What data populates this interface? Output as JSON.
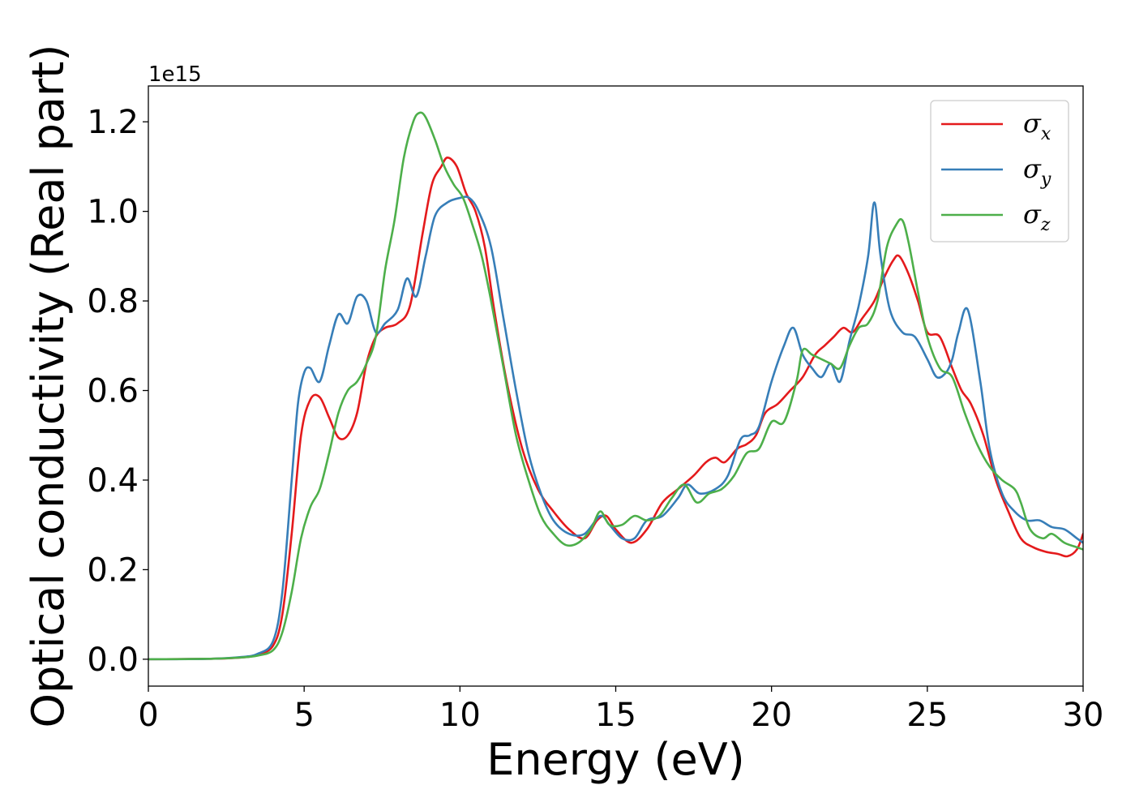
{
  "chart_data": {
    "type": "line",
    "title": "",
    "xlabel": "Energy (eV)",
    "ylabel": "Optical conductivity (Real part)",
    "y_offset_label": "1e15",
    "xlim": [
      0,
      30
    ],
    "ylim": [
      -0.06,
      1.28
    ],
    "x_ticks": [
      0,
      5,
      10,
      15,
      20,
      25,
      30
    ],
    "x_tick_labels": [
      "0",
      "5",
      "10",
      "15",
      "20",
      "25",
      "30"
    ],
    "y_ticks": [
      0.0,
      0.2,
      0.4,
      0.6,
      0.8,
      1.0,
      1.2
    ],
    "y_tick_labels": [
      "0.0",
      "0.2",
      "0.4",
      "0.6",
      "0.8",
      "1.0",
      "1.2"
    ],
    "grid": false,
    "legend_position": "top-right",
    "series": [
      {
        "name": "σx",
        "symbol": "σ",
        "subscript": "x",
        "color": "#e41a1c",
        "x": [
          0,
          2,
          3,
          3.5,
          4.0,
          4.3,
          4.6,
          4.9,
          5.2,
          5.5,
          5.8,
          6.1,
          6.4,
          6.7,
          7.0,
          7.3,
          7.6,
          8.0,
          8.4,
          8.8,
          9.1,
          9.4,
          9.6,
          9.9,
          10.2,
          10.5,
          10.8,
          11.1,
          11.5,
          12.0,
          12.5,
          13.0,
          13.5,
          14.0,
          14.4,
          14.7,
          15.0,
          15.5,
          16.0,
          16.5,
          17.0,
          17.5,
          17.9,
          18.2,
          18.5,
          18.9,
          19.2,
          19.5,
          19.8,
          20.2,
          20.6,
          21.0,
          21.4,
          21.7,
          22.0,
          22.3,
          22.6,
          22.9,
          23.3,
          23.6,
          23.9,
          24.1,
          24.4,
          24.7,
          25.0,
          25.4,
          25.8,
          26.1,
          26.4,
          26.8,
          27.2,
          27.6,
          28.0,
          28.4,
          28.8,
          29.2,
          29.5,
          29.8,
          30.0
        ],
        "y": [
          0.0,
          0.001,
          0.004,
          0.01,
          0.03,
          0.1,
          0.28,
          0.5,
          0.58,
          0.585,
          0.54,
          0.495,
          0.5,
          0.55,
          0.66,
          0.72,
          0.74,
          0.75,
          0.79,
          0.95,
          1.06,
          1.1,
          1.12,
          1.1,
          1.04,
          1.0,
          0.92,
          0.78,
          0.62,
          0.47,
          0.38,
          0.33,
          0.29,
          0.27,
          0.31,
          0.32,
          0.29,
          0.26,
          0.29,
          0.35,
          0.38,
          0.41,
          0.44,
          0.45,
          0.44,
          0.47,
          0.48,
          0.5,
          0.55,
          0.57,
          0.6,
          0.63,
          0.68,
          0.7,
          0.72,
          0.74,
          0.73,
          0.76,
          0.8,
          0.85,
          0.89,
          0.9,
          0.86,
          0.8,
          0.73,
          0.72,
          0.65,
          0.6,
          0.57,
          0.5,
          0.4,
          0.33,
          0.27,
          0.25,
          0.24,
          0.235,
          0.23,
          0.245,
          0.28
        ]
      },
      {
        "name": "σy",
        "symbol": "σ",
        "subscript": "y",
        "color": "#377eb8",
        "x": [
          0,
          2,
          3,
          3.5,
          4.0,
          4.3,
          4.6,
          4.8,
          5.0,
          5.2,
          5.5,
          5.8,
          6.1,
          6.4,
          6.7,
          7.0,
          7.3,
          7.6,
          8.0,
          8.3,
          8.6,
          8.9,
          9.2,
          9.6,
          10.0,
          10.3,
          10.6,
          11.0,
          11.4,
          11.8,
          12.2,
          12.6,
          13.0,
          13.5,
          14.0,
          14.5,
          14.8,
          15.2,
          15.6,
          16.0,
          16.5,
          17.0,
          17.3,
          17.7,
          18.2,
          18.6,
          19.0,
          19.3,
          19.6,
          20.0,
          20.4,
          20.7,
          21.0,
          21.3,
          21.6,
          21.9,
          22.2,
          22.5,
          22.8,
          23.1,
          23.3,
          23.5,
          23.8,
          24.2,
          24.6,
          25.0,
          25.3,
          25.6,
          25.8,
          26.0,
          26.3,
          26.7,
          27.0,
          27.4,
          27.8,
          28.2,
          28.6,
          29.0,
          29.4,
          29.8,
          30.0
        ],
        "y": [
          0.0,
          0.001,
          0.005,
          0.012,
          0.04,
          0.15,
          0.4,
          0.57,
          0.64,
          0.65,
          0.62,
          0.7,
          0.77,
          0.75,
          0.81,
          0.8,
          0.73,
          0.75,
          0.78,
          0.85,
          0.81,
          0.9,
          0.99,
          1.02,
          1.03,
          1.03,
          1.0,
          0.92,
          0.76,
          0.6,
          0.46,
          0.37,
          0.31,
          0.28,
          0.28,
          0.32,
          0.3,
          0.27,
          0.27,
          0.31,
          0.32,
          0.36,
          0.39,
          0.37,
          0.38,
          0.41,
          0.49,
          0.5,
          0.52,
          0.62,
          0.7,
          0.74,
          0.68,
          0.65,
          0.63,
          0.66,
          0.62,
          0.71,
          0.79,
          0.9,
          1.02,
          0.9,
          0.78,
          0.73,
          0.72,
          0.67,
          0.63,
          0.64,
          0.67,
          0.73,
          0.78,
          0.62,
          0.47,
          0.37,
          0.33,
          0.31,
          0.31,
          0.295,
          0.29,
          0.27,
          0.26
        ]
      },
      {
        "name": "σz",
        "symbol": "σ",
        "subscript": "z",
        "color": "#4daf4a",
        "x": [
          0,
          2,
          3,
          3.5,
          4.0,
          4.3,
          4.6,
          4.9,
          5.2,
          5.5,
          5.8,
          6.1,
          6.4,
          6.7,
          7.0,
          7.3,
          7.6,
          7.9,
          8.2,
          8.5,
          8.7,
          8.9,
          9.2,
          9.5,
          9.8,
          10.1,
          10.4,
          10.7,
          11.0,
          11.4,
          11.8,
          12.2,
          12.6,
          13.0,
          13.4,
          13.8,
          14.2,
          14.5,
          14.8,
          15.2,
          15.6,
          16.0,
          16.4,
          16.8,
          17.2,
          17.6,
          18.0,
          18.4,
          18.8,
          19.2,
          19.6,
          20.0,
          20.4,
          20.8,
          21.0,
          21.3,
          21.6,
          21.9,
          22.2,
          22.5,
          22.8,
          23.1,
          23.4,
          23.7,
          24.0,
          24.2,
          24.4,
          24.7,
          25.0,
          25.4,
          25.8,
          26.2,
          26.6,
          27.0,
          27.4,
          27.8,
          28.0,
          28.3,
          28.7,
          29.0,
          29.4,
          29.8,
          30.0
        ],
        "y": [
          0.0,
          0.001,
          0.004,
          0.008,
          0.02,
          0.06,
          0.15,
          0.27,
          0.34,
          0.38,
          0.46,
          0.55,
          0.6,
          0.62,
          0.66,
          0.72,
          0.87,
          0.98,
          1.12,
          1.2,
          1.22,
          1.21,
          1.16,
          1.1,
          1.06,
          1.03,
          0.97,
          0.9,
          0.8,
          0.65,
          0.5,
          0.4,
          0.32,
          0.28,
          0.255,
          0.26,
          0.29,
          0.33,
          0.3,
          0.3,
          0.32,
          0.31,
          0.32,
          0.36,
          0.39,
          0.35,
          0.37,
          0.38,
          0.41,
          0.46,
          0.47,
          0.53,
          0.53,
          0.62,
          0.69,
          0.68,
          0.67,
          0.66,
          0.65,
          0.7,
          0.74,
          0.75,
          0.8,
          0.92,
          0.97,
          0.98,
          0.93,
          0.82,
          0.72,
          0.65,
          0.63,
          0.55,
          0.48,
          0.43,
          0.4,
          0.38,
          0.35,
          0.29,
          0.27,
          0.28,
          0.26,
          0.25,
          0.245
        ]
      }
    ]
  }
}
